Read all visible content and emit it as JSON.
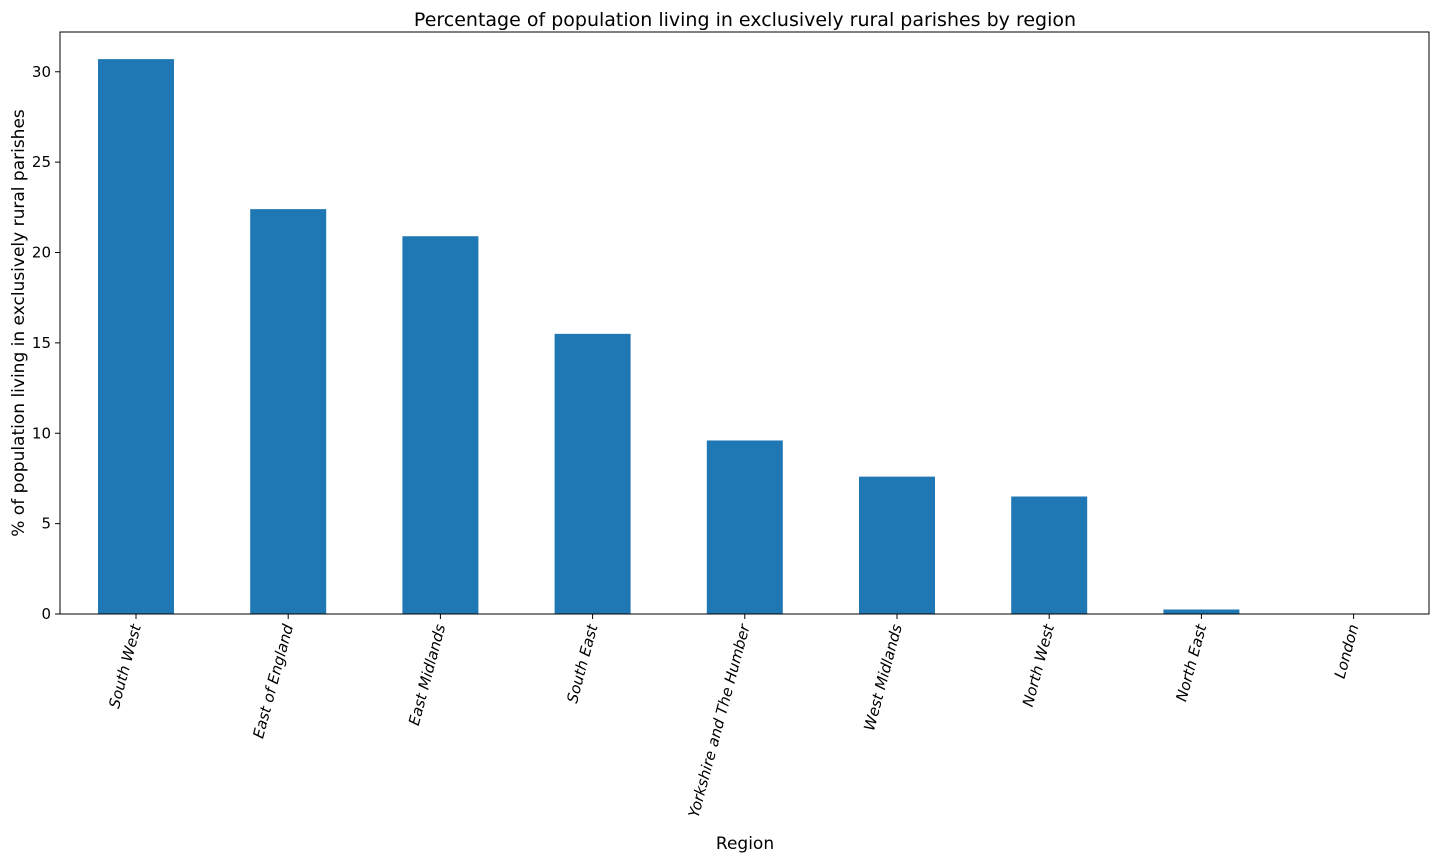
{
  "chart_data": {
    "type": "bar",
    "title": "Percentage of population living in exclusively rural parishes by region",
    "xlabel": "Region",
    "ylabel": "% of population living in exclusively rural parishes",
    "categories": [
      "South West",
      "East of England",
      "East Midlands",
      "South East",
      "Yorkshire and The Humber",
      "West Midlands",
      "North West",
      "North East",
      "London"
    ],
    "values": [
      30.7,
      22.4,
      20.9,
      15.5,
      9.6,
      7.6,
      6.5,
      0.25,
      0.0
    ],
    "yticks": [
      "0",
      "5",
      "10",
      "15",
      "20",
      "25",
      "30"
    ],
    "ylim": [
      0,
      32.2
    ],
    "grid": false,
    "bar_color": "#1f77b4"
  }
}
